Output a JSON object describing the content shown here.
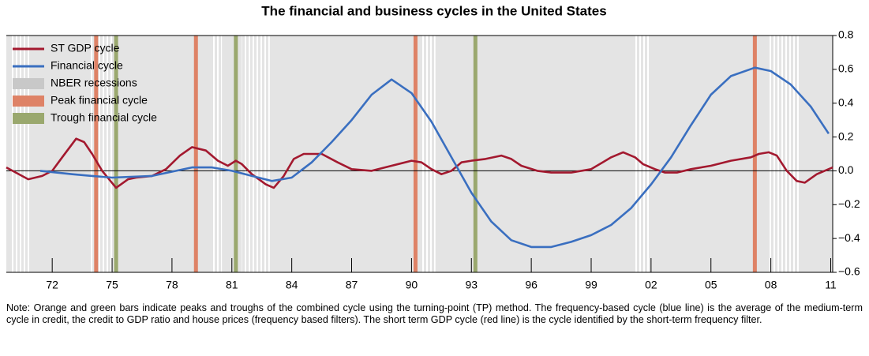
{
  "chart_data": {
    "type": "line",
    "title": "The financial and business cycles in the United States",
    "xlim": [
      1969.7,
      2011.1
    ],
    "xticks": [
      {
        "value": 1972,
        "label": "72"
      },
      {
        "value": 1975,
        "label": "75"
      },
      {
        "value": 1978,
        "label": "78"
      },
      {
        "value": 1981,
        "label": "81"
      },
      {
        "value": 1984,
        "label": "84"
      },
      {
        "value": 1987,
        "label": "87"
      },
      {
        "value": 1990,
        "label": "90"
      },
      {
        "value": 1993,
        "label": "93"
      },
      {
        "value": 1996,
        "label": "96"
      },
      {
        "value": 1999,
        "label": "99"
      },
      {
        "value": 2002,
        "label": "02"
      },
      {
        "value": 2005,
        "label": "05"
      },
      {
        "value": 2008,
        "label": "08"
      },
      {
        "value": 2011,
        "label": "11"
      }
    ],
    "ylim": [
      -0.6,
      0.8
    ],
    "yticks": [
      {
        "value": -0.6,
        "label": "−0.6"
      },
      {
        "value": -0.4,
        "label": "−0.4"
      },
      {
        "value": -0.2,
        "label": "−0.2"
      },
      {
        "value": 0,
        "label": "0.0"
      },
      0.2,
      0.4,
      0.6,
      0.8
    ],
    "series": [
      {
        "name": "ST GDP cycle",
        "color": "#a3192f",
        "x": [
          1969.7,
          1970.8,
          1971.5,
          1972,
          1972.5,
          1973.2,
          1973.6,
          1974,
          1974.5,
          1975.2,
          1975.8,
          1976.2,
          1977,
          1977.7,
          1978.4,
          1979,
          1979.7,
          1980.3,
          1980.8,
          1981.2,
          1981.5,
          1982,
          1982.7,
          1983.1,
          1983.6,
          1984.1,
          1984.6,
          1985.5,
          1986.3,
          1987,
          1988,
          1989,
          1990,
          1990.5,
          1991,
          1991.5,
          1992,
          1992.5,
          1993,
          1993.7,
          1994.5,
          1995,
          1995.5,
          1996.3,
          1997,
          1998,
          1999,
          2000,
          2000.6,
          2001.2,
          2001.6,
          2002.2,
          2002.7,
          2003.3,
          2004,
          2005,
          2006,
          2007,
          2007.4,
          2007.9,
          2008.3,
          2008.8,
          2009.3,
          2009.7,
          2010.3,
          2011.1
        ],
        "values": [
          0.02,
          -0.05,
          -0.03,
          0.0,
          0.08,
          0.19,
          0.17,
          0.1,
          0.0,
          -0.1,
          -0.05,
          -0.04,
          -0.03,
          0.01,
          0.09,
          0.14,
          0.12,
          0.06,
          0.03,
          0.06,
          0.04,
          -0.02,
          -0.08,
          -0.1,
          -0.03,
          0.07,
          0.1,
          0.1,
          0.05,
          0.01,
          0.0,
          0.03,
          0.06,
          0.05,
          0.01,
          -0.02,
          0.0,
          0.05,
          0.06,
          0.07,
          0.09,
          0.07,
          0.03,
          0.0,
          -0.01,
          -0.01,
          0.01,
          0.08,
          0.11,
          0.08,
          0.04,
          0.01,
          -0.01,
          -0.01,
          0.01,
          0.03,
          0.06,
          0.08,
          0.1,
          0.11,
          0.09,
          0.0,
          -0.06,
          -0.07,
          -0.02,
          0.02
        ]
      },
      {
        "name": "Financial cycle",
        "color": "#3a6fc0",
        "x": [
          1971.4,
          1973,
          1974,
          1975,
          1977,
          1979,
          1980,
          1981,
          1982,
          1983,
          1984,
          1985,
          1986,
          1987,
          1988,
          1989,
          1990,
          1991,
          1992,
          1993,
          1994,
          1995,
          1996,
          1997,
          1998,
          1999,
          2000,
          2001,
          2002,
          2003,
          2004,
          2005,
          2006,
          2007.2,
          2008,
          2009,
          2010,
          2010.9
        ],
        "values": [
          0.0,
          -0.02,
          -0.03,
          -0.04,
          -0.03,
          0.02,
          0.02,
          0.0,
          -0.03,
          -0.06,
          -0.04,
          0.05,
          0.17,
          0.3,
          0.45,
          0.54,
          0.46,
          0.29,
          0.08,
          -0.13,
          -0.3,
          -0.41,
          -0.45,
          -0.45,
          -0.42,
          -0.38,
          -0.32,
          -0.22,
          -0.08,
          0.08,
          0.27,
          0.45,
          0.56,
          0.61,
          0.59,
          0.51,
          0.38,
          0.22
        ]
      }
    ],
    "recessions": {
      "name": "NBER recessions",
      "color": "#c8c8c8",
      "ranges": [
        [
          1969.9,
          1970.9
        ],
        [
          1973.9,
          1975.2
        ],
        [
          1980.0,
          1980.5
        ],
        [
          1981.5,
          1982.9
        ],
        [
          1990.5,
          1991.2
        ],
        [
          2001.2,
          2001.9
        ],
        [
          2007.9,
          2009.5
        ]
      ]
    },
    "peaks": {
      "name": "Peak financial cycle",
      "color": "#de8266",
      "values": [
        1974.2,
        1979.2,
        1990.2,
        2007.2
      ]
    },
    "troughs": {
      "name": "Trough financial cycle",
      "color": "#9aa86e",
      "values": [
        1975.2,
        1981.2,
        1993.2
      ]
    },
    "note": "Note: Orange and green bars indicate peaks and troughs of the combined cycle using the turning-point (TP) method. The frequency-based cycle (blue line) is the average of the medium-term cycle in credit, the credit to GDP ratio and house prices (frequency based filters). The short term GDP cycle (red line) is the cycle identified by the short-term frequency filter."
  }
}
